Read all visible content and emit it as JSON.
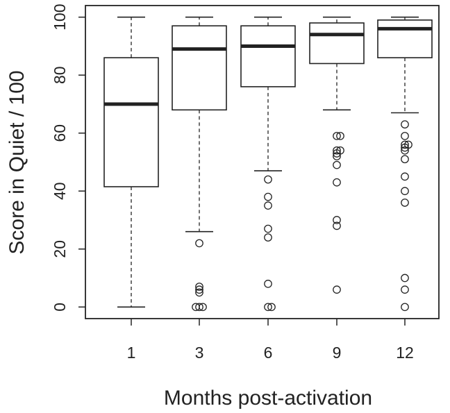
{
  "chart_data": {
    "type": "box",
    "title": "",
    "xlabel": "Months post-activation",
    "ylabel": "Score in Quiet / 100",
    "ylim": [
      -4,
      104
    ],
    "yticks": [
      0,
      20,
      40,
      60,
      80,
      100
    ],
    "grid": false,
    "categories": [
      "1",
      "3",
      "6",
      "9",
      "12"
    ],
    "boxes": [
      {
        "category": "1",
        "whisker_low": 0,
        "q1": 41.5,
        "median": 70,
        "q3": 86,
        "whisker_high": 100,
        "outliers": []
      },
      {
        "category": "3",
        "whisker_low": 26,
        "q1": 68,
        "median": 89,
        "q3": 97,
        "whisker_high": 100,
        "outliers": [
          22,
          7,
          6,
          5,
          0,
          0,
          0
        ]
      },
      {
        "category": "6",
        "whisker_low": 47,
        "q1": 76,
        "median": 90,
        "q3": 97,
        "whisker_high": 100,
        "outliers": [
          44,
          38,
          35,
          27,
          24,
          8,
          0,
          0
        ]
      },
      {
        "category": "9",
        "whisker_low": 68,
        "q1": 84,
        "median": 94,
        "q3": 98,
        "whisker_high": 100,
        "outliers": [
          59,
          59,
          54,
          54,
          53,
          52,
          49,
          43,
          30,
          28,
          6
        ]
      },
      {
        "category": "12",
        "whisker_low": 67,
        "q1": 86,
        "median": 96,
        "q3": 99,
        "whisker_high": 100,
        "outliers": [
          63,
          59,
          56,
          56,
          55,
          54,
          51,
          45,
          40,
          36,
          10,
          6,
          0
        ]
      }
    ]
  },
  "colors": {
    "stroke": "#222222",
    "median": "#222222",
    "background": "#ffffff"
  }
}
